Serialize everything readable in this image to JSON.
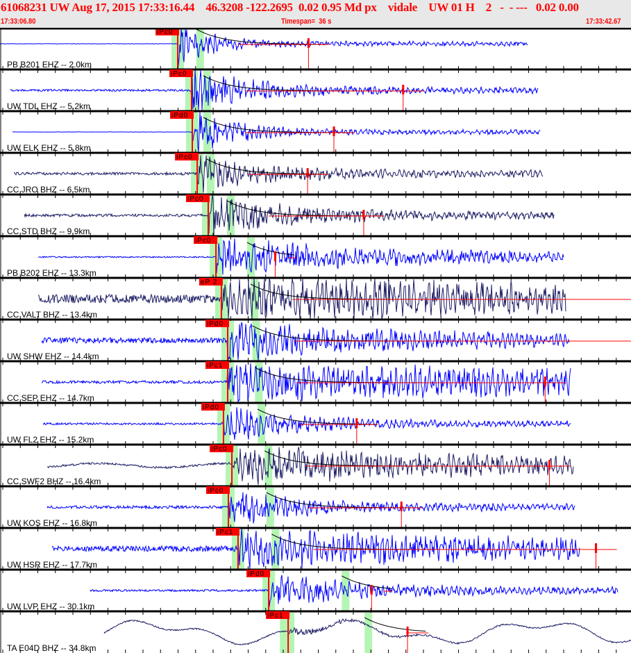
{
  "header": {
    "title": "61068231 UW Aug 17, 2015 17:33:16.44    46.3208 -122.2695  0.02 0.95 Md px    vidale    UW 01 H    2   -  - ---   0.02 0.00",
    "start_time": "17:33:06.80",
    "timespan": "Timespan=  36 s",
    "end_time": "17:33:42.67"
  },
  "timespan_s": 36,
  "colors": {
    "ehz": "#0000ff",
    "bhz": "#1c1c64",
    "pick": "#ff0000",
    "window": "#b4f5b4",
    "coda_fit": "#000000"
  },
  "traces": [
    {
      "label": "PB B201 EHZ -- 2.0km",
      "pick": "iPc0",
      "p_s": 10.14,
      "s_s": 11.2,
      "coda_end_s": 17.6,
      "type": "ehz"
    },
    {
      "label": "UW TDL EHZ -- 5.2km",
      "pick": "iPc0",
      "p_s": 10.93,
      "s_s": 11.6,
      "coda_end_s": 23.0,
      "type": "ehz"
    },
    {
      "label": "UW ELK EHZ -- 5.8km",
      "pick": "iPd0",
      "p_s": 10.97,
      "s_s": 11.6,
      "coda_end_s": 19.05,
      "type": "ehz"
    },
    {
      "label": "CC JRO BHZ -- 6.5km",
      "pick": "iPc0",
      "p_s": 11.25,
      "s_s": 11.8,
      "coda_end_s": 17.55,
      "type": "bhz"
    },
    {
      "label": "CC STD BHZ -- 9.9km",
      "pick": "iPc0",
      "p_s": 11.88,
      "s_s": 12.95,
      "coda_end_s": 20.75,
      "type": "bhz"
    },
    {
      "label": "PB B202 EHZ -- 13.3km",
      "pick": "iPc0",
      "p_s": 12.32,
      "s_s": 14.1,
      "coda_end_s": 15.7,
      "type": "ehz"
    },
    {
      "label": "CC VALT BHZ -- 13.4km",
      "pick": "eP 2",
      "p_s": 12.63,
      "s_s": 14.3,
      "coda_end_s": 36.0,
      "type": "bhz"
    },
    {
      "label": "UW SHW EHZ -- 14.4km",
      "pick": "iPd0",
      "p_s": 12.99,
      "s_s": 14.4,
      "coda_end_s": 36.0,
      "type": "ehz"
    },
    {
      "label": "CC SEP EHZ -- 14.7km",
      "pick": "iPc1",
      "p_s": 12.99,
      "s_s": 14.55,
      "coda_end_s": 31.1,
      "type": "ehz"
    },
    {
      "label": "UW FL2 EHZ -- 15.2km",
      "pick": "iPd0",
      "p_s": 12.75,
      "s_s": 14.7,
      "coda_end_s": 20.35,
      "type": "ehz"
    },
    {
      "label": "CC SWF2 BHZ -- 16.4km",
      "pick": "iPc0",
      "p_s": 13.23,
      "s_s": 15.1,
      "coda_end_s": 31.35,
      "type": "bhz"
    },
    {
      "label": "UW KOS EHZ -- 16.8km",
      "pick": "iPc0",
      "p_s": 13.03,
      "s_s": 15.2,
      "coda_end_s": 22.9,
      "type": "ehz"
    },
    {
      "label": "UW HSR EHZ -- 17.7km",
      "pick": "iPc1",
      "p_s": 13.58,
      "s_s": 15.5,
      "coda_end_s": 34.0,
      "type": "ehz"
    },
    {
      "label": "UW LVP EHZ -- 30.1km",
      "pick": "iPd0",
      "p_s": 15.33,
      "s_s": 19.5,
      "coda_end_s": 21.2,
      "type": "ehz"
    },
    {
      "label": "TA E04D BHZ -- 34.8km",
      "pick": "iPc1",
      "p_s": 16.44,
      "s_s": 20.8,
      "coda_end_s": 23.25,
      "type": "bhz"
    }
  ]
}
